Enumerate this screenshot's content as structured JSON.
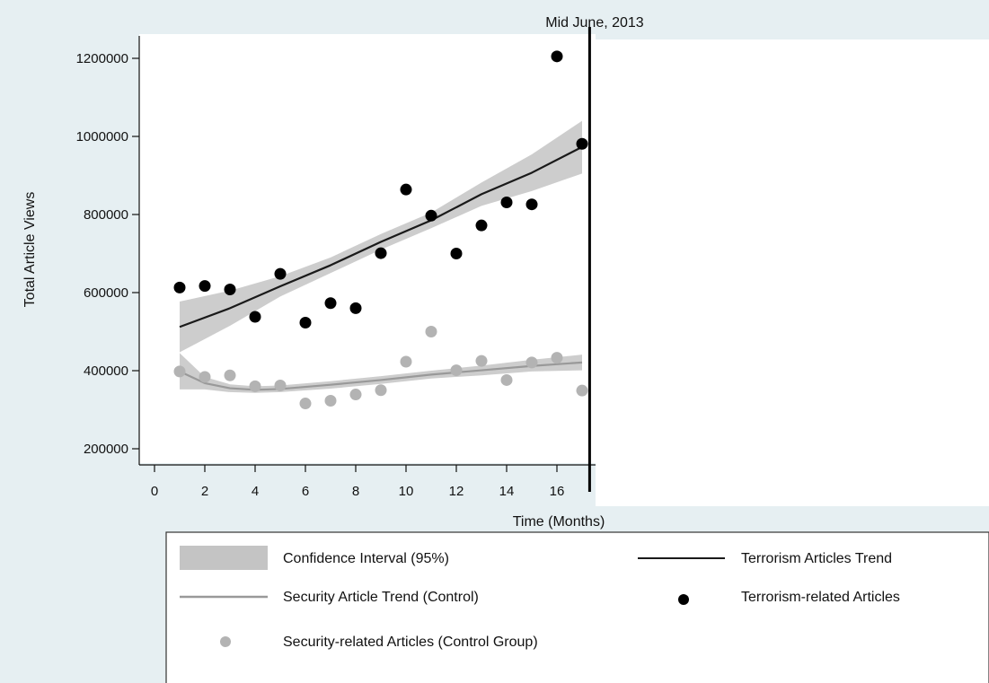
{
  "chart_data": {
    "type": "scatter",
    "title": "",
    "xlabel": "Time (Months)",
    "ylabel": "Total Article Views",
    "annotation": "Mid June, 2013",
    "intervention_x": 17.3,
    "xlim": [
      0,
      17
    ],
    "ylim": [
      200000,
      1200000
    ],
    "xticks": [
      "0",
      "2",
      "4",
      "6",
      "8",
      "10",
      "12",
      "14",
      "16"
    ],
    "yticks": [
      "200000",
      "400000",
      "600000",
      "800000",
      "1000000",
      "1200000"
    ],
    "grid": false,
    "legend_position": "bottom",
    "series": [
      {
        "name": "Terrorism-related Articles",
        "kind": "points",
        "color": "#000000",
        "x": [
          1,
          2,
          3,
          4,
          5,
          6,
          7,
          8,
          9,
          10,
          11,
          12,
          13,
          14,
          15,
          16,
          17
        ],
        "y": [
          613000,
          617000,
          608000,
          538000,
          648000,
          523000,
          573000,
          560000,
          701000,
          864000,
          797000,
          700000,
          772000,
          831000,
          826000,
          1205000,
          981000
        ]
      },
      {
        "name": "Security-related Articles (Control Group)",
        "kind": "points",
        "color": "#b3b3b3",
        "x": [
          1,
          2,
          3,
          4,
          5,
          6,
          7,
          8,
          9,
          10,
          11,
          12,
          13,
          14,
          15,
          16,
          17
        ],
        "y": [
          398000,
          384000,
          388000,
          360000,
          362000,
          316000,
          323000,
          339000,
          350000,
          423000,
          500000,
          401000,
          425000,
          376000,
          421000,
          433000,
          349000
        ]
      },
      {
        "name": "Terrorism Articles Trend",
        "kind": "line",
        "color": "#1a1a1a",
        "x": [
          1,
          3,
          5,
          7,
          9,
          11,
          13,
          15,
          17
        ],
        "y": [
          512000,
          560000,
          616000,
          670000,
          730000,
          785000,
          852000,
          907000,
          973000
        ],
        "ci_lower": [
          447000,
          515000,
          590000,
          650000,
          710000,
          765000,
          822000,
          860000,
          905000
        ],
        "ci_upper": [
          577000,
          605000,
          642000,
          690000,
          750000,
          805000,
          882000,
          954000,
          1040000
        ]
      },
      {
        "name": "Security Article Trend (Control)",
        "kind": "line",
        "color": "#999999",
        "x": [
          1,
          2,
          3,
          4,
          5,
          7,
          9,
          11,
          13,
          15,
          17
        ],
        "y": [
          398000,
          368000,
          355000,
          351000,
          353000,
          364000,
          376000,
          390000,
          401000,
          412000,
          421000
        ],
        "ci_lower": [
          352000,
          352000,
          345000,
          343000,
          345000,
          354000,
          366000,
          380000,
          388000,
          398000,
          401000
        ],
        "ci_upper": [
          445000,
          384000,
          365000,
          360000,
          362000,
          373000,
          386000,
          400000,
          413000,
          428000,
          441000
        ]
      }
    ],
    "legend": {
      "ci": "Confidence Interval (95%)",
      "terror_trend": "Terrorism Articles Trend",
      "security_trend": "Security Article Trend (Control)",
      "terror_points": "Terrorism-related Articles",
      "security_points": "Security-related Articles (Control Group)"
    },
    "colors": {
      "ci_band": "#c4c4c4",
      "plot_bg": "#ffffff",
      "page_bg": "#e6eff2"
    }
  }
}
